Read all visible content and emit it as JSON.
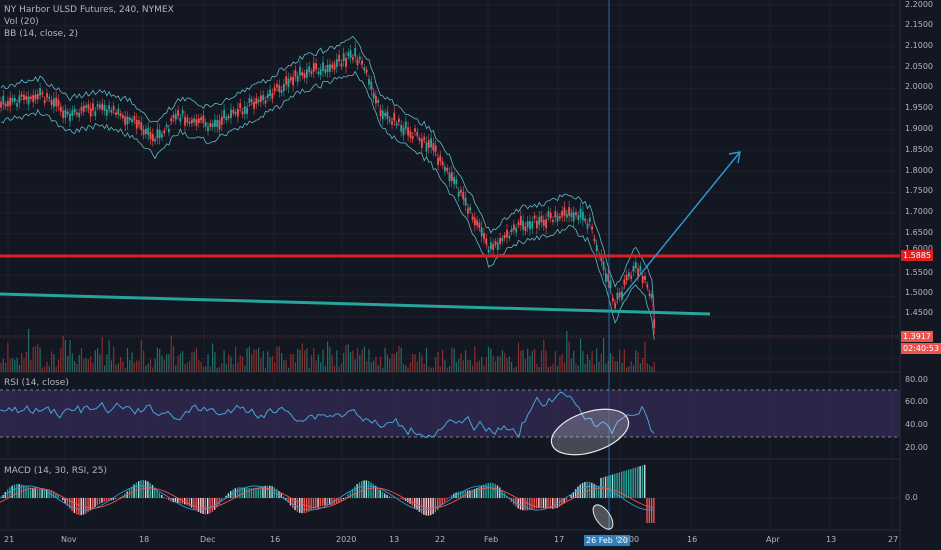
{
  "header": {
    "symbol_title": "NY Harbor ULSD Futures, 240, NYMEX",
    "vol_label": "Vol (20)",
    "bb_label": "BB (14, close, 2)"
  },
  "rsi_panel": {
    "label": "RSI (14, close)",
    "ticks": [
      "80.00",
      "60.00",
      "40.00",
      "20.00"
    ]
  },
  "macd_panel": {
    "label": "MACD (14, 30, RSI, 25)",
    "ticks": [
      "0.0"
    ]
  },
  "price_axis": {
    "ticks": [
      "2.2000",
      "2.1500",
      "2.1000",
      "2.0500",
      "2.0000",
      "1.9500",
      "1.9000",
      "1.8500",
      "1.8000",
      "1.7500",
      "1.7000",
      "1.6500",
      "1.6000",
      "1.5500",
      "1.5000",
      "1.4500"
    ],
    "level_badge": "1.5885",
    "last_price_badge": "1.3917",
    "countdown_badge": "02:40:53"
  },
  "time_axis": {
    "labels": [
      "21",
      "Nov",
      "18",
      "Dec",
      "16",
      "2020",
      "13",
      "22",
      "Feb",
      "17",
      "26 Feb '20",
      "23:00",
      "16",
      "Apr",
      "13",
      "27"
    ]
  },
  "colors": {
    "background": "#131722",
    "up_candle": "#26a69a",
    "down_candle": "#ef5350",
    "bollinger": "#5fb8c9",
    "support_line": "#e01e1e",
    "trend_line": "#26a69a",
    "projection_arrow": "#2e9bd6",
    "rsi_band": "#3c2f63",
    "crosshair_badge": "#2f7fbf",
    "price_badge": "#ef5350"
  },
  "icons": [
    "projection-arrow-icon",
    "ellipse-highlight-icon"
  ]
}
